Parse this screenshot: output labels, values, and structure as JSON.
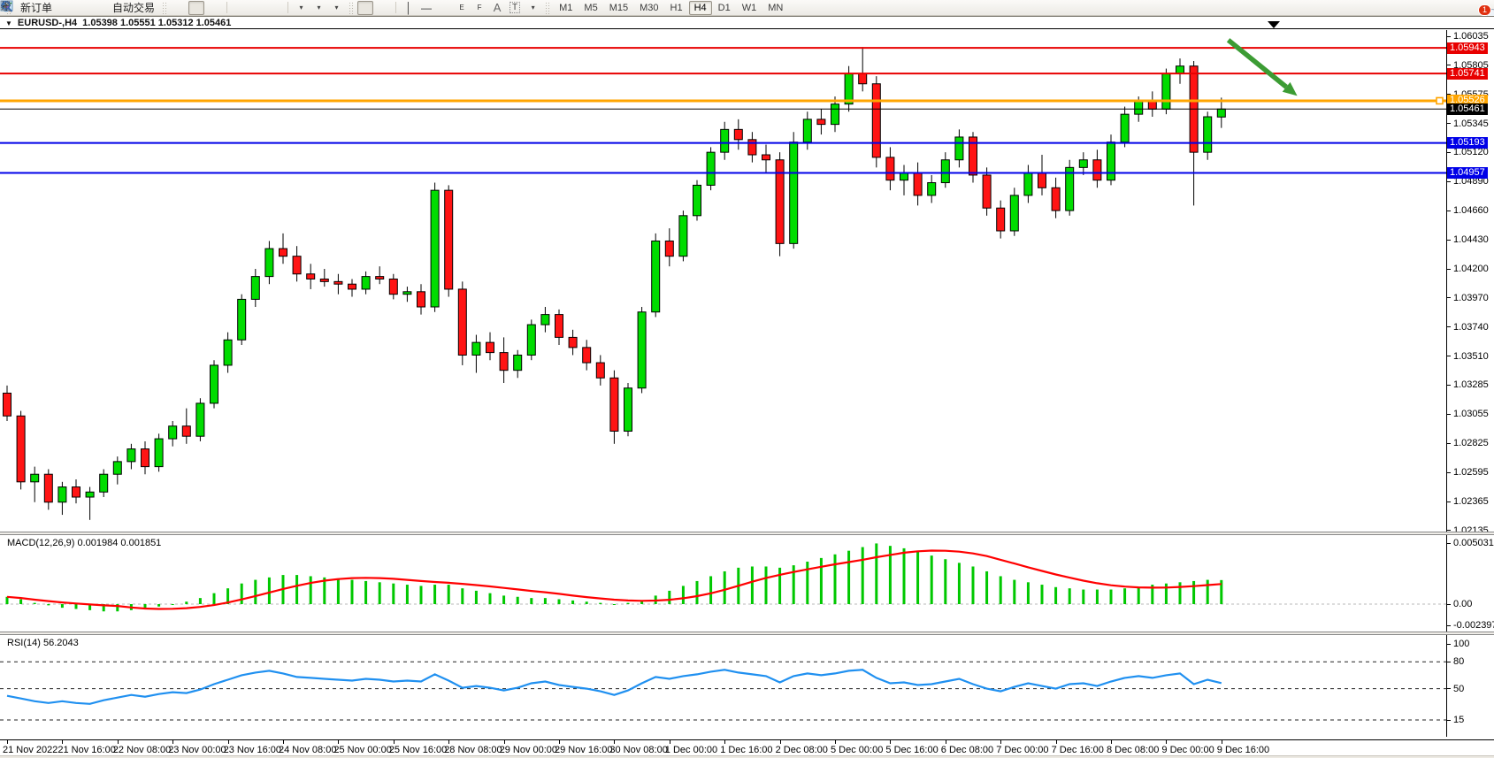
{
  "toolbar": {
    "new_order_label": "新订单",
    "autotrading_label": "自动交易",
    "equidistant_letter": "E",
    "fibo_letter": "F",
    "text_letter": "A",
    "label_letter": "T",
    "timeframes": [
      "M1",
      "M5",
      "M15",
      "M30",
      "H1",
      "H4",
      "D1",
      "W1",
      "MN"
    ],
    "active_timeframe": "H4",
    "chat_badge": "1"
  },
  "chart_header": {
    "symbol_period": "EURUSD-,H4",
    "ohlc": "1.05398 1.05551 1.05312 1.05461"
  },
  "chart_data": {
    "type": "candlestick",
    "symbol": "EURUSD-",
    "timeframe": "H4",
    "current_bar": {
      "open": 1.05398,
      "high": 1.05551,
      "low": 1.05312,
      "close": 1.05461
    },
    "colors": {
      "up": "#00DC00",
      "down": "#FF1414",
      "wick": "#000000",
      "macd_hist": "#00C800",
      "macd_signal": "#FF0000",
      "rsi_line": "#2090F0",
      "arrow": "#3C9C34"
    },
    "y_axis_ticks": [
      "1.06035",
      "1.05805",
      "1.05575",
      "1.05345",
      "1.05120",
      "1.04890",
      "1.04660",
      "1.04430",
      "1.04200",
      "1.03970",
      "1.03740",
      "1.03510",
      "1.03285",
      "1.03055",
      "1.02825",
      "1.02595",
      "1.02365",
      "1.02135"
    ],
    "x_axis_labels": [
      "21 Nov 2022",
      "21 Nov 16:00",
      "22 Nov 08:00",
      "23 Nov 00:00",
      "23 Nov 16:00",
      "24 Nov 08:00",
      "25 Nov 00:00",
      "25 Nov 16:00",
      "28 Nov 08:00",
      "29 Nov 00:00",
      "29 Nov 16:00",
      "30 Nov 08:00",
      "1 Dec 00:00",
      "1 Dec 16:00",
      "2 Dec 08:00",
      "5 Dec 00:00",
      "5 Dec 16:00",
      "6 Dec 08:00",
      "7 Dec 00:00",
      "7 Dec 16:00",
      "8 Dec 08:00",
      "9 Dec 00:00",
      "9 Dec 16:00"
    ],
    "horizontal_lines": [
      {
        "label": "1.05943",
        "price": 1.05943,
        "color": "#E80000",
        "width": 2
      },
      {
        "label": "1.05741",
        "price": 1.05741,
        "color": "#E80000",
        "width": 2
      },
      {
        "label": "1.05526",
        "price": 1.05526,
        "color": "#FFA500",
        "width": 3,
        "selected": true
      },
      {
        "label": "1.05461",
        "price": 1.05461,
        "color": "#000000",
        "width": 1,
        "role": "current-price"
      },
      {
        "label": "1.05193",
        "price": 1.05193,
        "color": "#0000E8",
        "width": 2
      },
      {
        "label": "1.04957",
        "price": 1.04957,
        "color": "#0000E8",
        "width": 2
      }
    ],
    "candles": [
      [
        1.0322,
        1.0328,
        1.03,
        1.0304
      ],
      [
        1.0304,
        1.0308,
        1.0246,
        1.0252
      ],
      [
        1.0252,
        1.0264,
        1.0236,
        1.0258
      ],
      [
        1.0258,
        1.0262,
        1.023,
        1.0236
      ],
      [
        1.0236,
        1.0252,
        1.0226,
        1.0248
      ],
      [
        1.0248,
        1.0254,
        1.0235,
        1.024
      ],
      [
        1.024,
        1.0248,
        1.0222,
        1.0244
      ],
      [
        1.0244,
        1.0262,
        1.024,
        1.0258
      ],
      [
        1.0258,
        1.0272,
        1.025,
        1.0268
      ],
      [
        1.0268,
        1.0282,
        1.0262,
        1.0278
      ],
      [
        1.0278,
        1.0284,
        1.0258,
        1.0264
      ],
      [
        1.0264,
        1.029,
        1.026,
        1.0286
      ],
      [
        1.0286,
        1.03,
        1.028,
        1.0296
      ],
      [
        1.0296,
        1.031,
        1.0282,
        1.0288
      ],
      [
        1.0288,
        1.0318,
        1.0284,
        1.0314
      ],
      [
        1.0314,
        1.0348,
        1.031,
        1.0344
      ],
      [
        1.0344,
        1.037,
        1.0338,
        1.0364
      ],
      [
        1.0364,
        1.04,
        1.036,
        1.0396
      ],
      [
        1.0396,
        1.042,
        1.039,
        1.0414
      ],
      [
        1.0414,
        1.0442,
        1.0408,
        1.0436
      ],
      [
        1.0436,
        1.0448,
        1.0424,
        1.043
      ],
      [
        1.043,
        1.0438,
        1.041,
        1.0416
      ],
      [
        1.0416,
        1.0424,
        1.0404,
        1.0412
      ],
      [
        1.0412,
        1.042,
        1.0406,
        1.041
      ],
      [
        1.041,
        1.0416,
        1.04,
        1.0408
      ],
      [
        1.0408,
        1.0412,
        1.0398,
        1.0404
      ],
      [
        1.0404,
        1.0418,
        1.04,
        1.0414
      ],
      [
        1.0414,
        1.0422,
        1.0408,
        1.0412
      ],
      [
        1.0412,
        1.0416,
        1.0396,
        1.04
      ],
      [
        1.04,
        1.0406,
        1.0394,
        1.0402
      ],
      [
        1.0402,
        1.0408,
        1.0384,
        1.039
      ],
      [
        1.039,
        1.0488,
        1.0386,
        1.0482
      ],
      [
        1.0482,
        1.0486,
        1.0398,
        1.0404
      ],
      [
        1.0404,
        1.041,
        1.0344,
        1.0352
      ],
      [
        1.0352,
        1.0368,
        1.0338,
        1.0362
      ],
      [
        1.0362,
        1.037,
        1.0348,
        1.0354
      ],
      [
        1.0354,
        1.0366,
        1.033,
        1.034
      ],
      [
        1.034,
        1.0356,
        1.0334,
        1.0352
      ],
      [
        1.0352,
        1.038,
        1.0348,
        1.0376
      ],
      [
        1.0376,
        1.039,
        1.037,
        1.0384
      ],
      [
        1.0384,
        1.0388,
        1.036,
        1.0366
      ],
      [
        1.0366,
        1.0372,
        1.0352,
        1.0358
      ],
      [
        1.0358,
        1.0364,
        1.034,
        1.0346
      ],
      [
        1.0346,
        1.0352,
        1.0328,
        1.0334
      ],
      [
        1.0334,
        1.034,
        1.0282,
        1.0292
      ],
      [
        1.0292,
        1.033,
        1.0288,
        1.0326
      ],
      [
        1.0326,
        1.039,
        1.0322,
        1.0386
      ],
      [
        1.0386,
        1.0448,
        1.0382,
        1.0442
      ],
      [
        1.0442,
        1.0452,
        1.0422,
        1.043
      ],
      [
        1.043,
        1.0466,
        1.0426,
        1.0462
      ],
      [
        1.0462,
        1.049,
        1.0458,
        1.0486
      ],
      [
        1.0486,
        1.0516,
        1.0482,
        1.0512
      ],
      [
        1.0512,
        1.0536,
        1.0506,
        1.053
      ],
      [
        1.053,
        1.0538,
        1.0514,
        1.0522
      ],
      [
        1.0522,
        1.0528,
        1.0504,
        1.051
      ],
      [
        1.051,
        1.0518,
        1.0496,
        1.0506
      ],
      [
        1.0506,
        1.0512,
        1.043,
        1.044
      ],
      [
        1.044,
        1.0528,
        1.0436,
        1.052
      ],
      [
        1.052,
        1.0544,
        1.0514,
        1.0538
      ],
      [
        1.0538,
        1.0546,
        1.0526,
        1.0534
      ],
      [
        1.0534,
        1.0556,
        1.0528,
        1.055
      ],
      [
        1.055,
        1.058,
        1.0544,
        1.0574
      ],
      [
        1.0574,
        1.0595,
        1.056,
        1.0566
      ],
      [
        1.0566,
        1.0572,
        1.05,
        1.0508
      ],
      [
        1.0508,
        1.0516,
        1.0482,
        1.049
      ],
      [
        1.049,
        1.0502,
        1.0478,
        1.0496
      ],
      [
        1.0496,
        1.0504,
        1.047,
        1.0478
      ],
      [
        1.0478,
        1.0494,
        1.0472,
        1.0488
      ],
      [
        1.0488,
        1.0512,
        1.0484,
        1.0506
      ],
      [
        1.0506,
        1.053,
        1.05,
        1.0524
      ],
      [
        1.0524,
        1.0528,
        1.0488,
        1.0494
      ],
      [
        1.0494,
        1.05,
        1.0462,
        1.0468
      ],
      [
        1.0468,
        1.0474,
        1.0444,
        1.045
      ],
      [
        1.045,
        1.0484,
        1.0446,
        1.0478
      ],
      [
        1.0478,
        1.0502,
        1.0472,
        1.0496
      ],
      [
        1.0496,
        1.051,
        1.0478,
        1.0484
      ],
      [
        1.0484,
        1.0492,
        1.046,
        1.0466
      ],
      [
        1.0466,
        1.0506,
        1.0462,
        1.05
      ],
      [
        1.05,
        1.0512,
        1.0494,
        1.0506
      ],
      [
        1.0506,
        1.0514,
        1.0484,
        1.049
      ],
      [
        1.049,
        1.0526,
        1.0486,
        1.052
      ],
      [
        1.052,
        1.0548,
        1.0516,
        1.0542
      ],
      [
        1.0542,
        1.0556,
        1.0536,
        1.0552
      ],
      [
        1.0552,
        1.056,
        1.054,
        1.0546
      ],
      [
        1.0546,
        1.0578,
        1.0542,
        1.0574
      ],
      [
        1.0574,
        1.0586,
        1.0566,
        1.058
      ],
      [
        1.058,
        1.0584,
        1.047,
        1.0512
      ],
      [
        1.0512,
        1.0544,
        1.0506,
        1.054
      ],
      [
        1.05398,
        1.05551,
        1.05312,
        1.05461
      ]
    ],
    "macd": {
      "label": "MACD(12,26,9)",
      "values_label": "0.001984 0.001851",
      "axis_ticks": [
        "0.005031",
        "0.00",
        "-0.002397"
      ],
      "axis_values": [
        0.005031,
        0.0,
        -0.002397
      ],
      "histogram": [
        0.0006,
        0.0004,
        0.0001,
        -0.0001,
        -0.0003,
        -0.0004,
        -0.0005,
        -0.0006,
        -0.0006,
        -0.0005,
        -0.0004,
        -0.0002,
        0.0,
        0.0002,
        0.0005,
        0.0009,
        0.0013,
        0.0017,
        0.002,
        0.0022,
        0.0024,
        0.0024,
        0.0023,
        0.0022,
        0.0021,
        0.002,
        0.0019,
        0.0018,
        0.0017,
        0.0016,
        0.0015,
        0.0016,
        0.0016,
        0.0013,
        0.0011,
        0.0009,
        0.0007,
        0.0006,
        0.0005,
        0.0005,
        0.0004,
        0.0003,
        0.0002,
        0.0001,
        0.0,
        0.0001,
        0.0003,
        0.0007,
        0.0011,
        0.0015,
        0.0019,
        0.0023,
        0.0027,
        0.003,
        0.0031,
        0.0031,
        0.003,
        0.0032,
        0.0035,
        0.0038,
        0.0041,
        0.0044,
        0.0047,
        0.005,
        0.0048,
        0.0046,
        0.0043,
        0.004,
        0.0037,
        0.0034,
        0.0031,
        0.0027,
        0.0023,
        0.002,
        0.0018,
        0.0016,
        0.0014,
        0.0013,
        0.0012,
        0.0012,
        0.0012,
        0.0013,
        0.0014,
        0.0016,
        0.0017,
        0.0018,
        0.0019,
        0.002,
        0.00198
      ]
    },
    "rsi": {
      "label": "RSI(14)",
      "value_label": "56.2043",
      "axis_ticks": [
        "100",
        "80",
        "50",
        "15"
      ],
      "levels": [
        80,
        50,
        15
      ],
      "values": [
        42,
        39,
        36,
        34,
        36,
        34,
        33,
        37,
        40,
        43,
        41,
        44,
        46,
        45,
        49,
        55,
        60,
        65,
        68,
        70,
        67,
        63,
        62,
        61,
        60,
        59,
        61,
        60,
        58,
        59,
        58,
        66,
        59,
        51,
        53,
        51,
        48,
        51,
        56,
        58,
        54,
        52,
        50,
        47,
        43,
        48,
        56,
        63,
        61,
        64,
        66,
        69,
        71,
        68,
        66,
        64,
        57,
        64,
        67,
        65,
        67,
        70,
        71,
        62,
        56,
        57,
        54,
        55,
        58,
        61,
        55,
        50,
        47,
        52,
        56,
        53,
        50,
        55,
        56,
        53,
        58,
        62,
        64,
        62,
        65,
        67,
        55,
        60,
        56.2
      ]
    },
    "annotations": {
      "arrow": {
        "from_bar": 88.5,
        "from_price": 1.06005,
        "to_bar": 93.5,
        "to_price": 1.05565,
        "color": "#3C9C34"
      },
      "shift_marker_bar": 91.8,
      "selected_line_handle": {
        "price": 1.05526,
        "color": "#FFA500"
      }
    }
  }
}
